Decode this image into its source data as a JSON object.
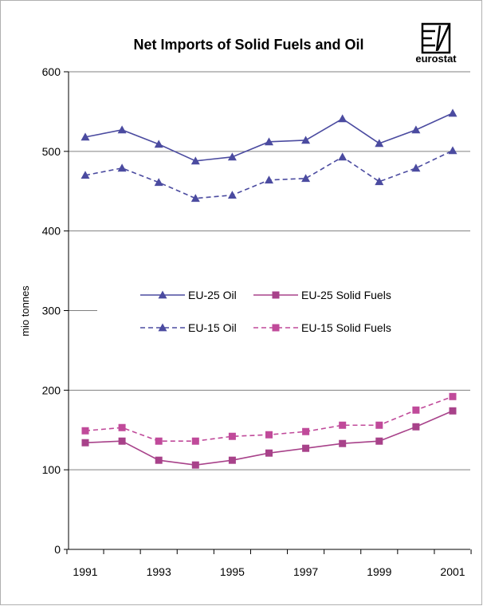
{
  "logo": {
    "text": "eurostat"
  },
  "chart_data": {
    "type": "line",
    "title": "Net Imports of Solid Fuels and Oil",
    "xlabel": "",
    "ylabel": "mio tonnes",
    "x": [
      1991,
      1992,
      1993,
      1994,
      1995,
      1996,
      1997,
      1998,
      1999,
      2000,
      2001
    ],
    "x_tick_labels": [
      "1991",
      "1993",
      "1995",
      "1997",
      "1999",
      "2001"
    ],
    "y_ticks": [
      0,
      100,
      200,
      300,
      400,
      500,
      600
    ],
    "ylim": [
      0,
      600
    ],
    "grid": true,
    "legend_position": "center",
    "series": [
      {
        "name": "EU-25 Oil",
        "marker": "triangle",
        "style": "solid",
        "color": "#4b4ba0",
        "values": [
          518,
          527,
          509,
          488,
          493,
          512,
          514,
          541,
          510,
          527,
          548
        ]
      },
      {
        "name": "EU-25 Solid Fuels",
        "marker": "square",
        "style": "solid",
        "color": "#a8428a",
        "values": [
          134,
          136,
          112,
          106,
          112,
          121,
          127,
          133,
          136,
          154,
          174
        ]
      },
      {
        "name": "EU-15 Oil",
        "marker": "triangle",
        "style": "dashed",
        "color": "#4b4ba0",
        "values": [
          470,
          479,
          461,
          441,
          445,
          464,
          466,
          493,
          462,
          479,
          501
        ]
      },
      {
        "name": "EU-15 Solid Fuels",
        "marker": "square",
        "style": "dashed",
        "color": "#c04a9a",
        "values": [
          149,
          153,
          136,
          136,
          142,
          144,
          148,
          156,
          156,
          175,
          192
        ]
      }
    ]
  }
}
